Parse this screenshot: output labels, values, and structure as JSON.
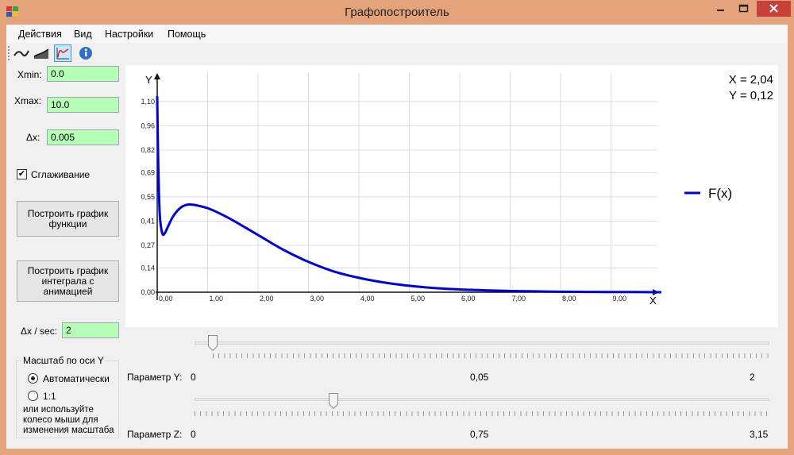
{
  "window": {
    "title": "Графопостроитель"
  },
  "menu": [
    "Действия",
    "Вид",
    "Настройки",
    "Помощь"
  ],
  "toolbar": {
    "icons": [
      "curve-icon",
      "area-icon",
      "integral-icon",
      "info-icon"
    ]
  },
  "params": {
    "xmin_label": "Xmin:",
    "xmin_value": "0.0",
    "xmax_label": "Xmax:",
    "xmax_value": "10.0",
    "dx_label": "Δx:",
    "dx_value": "0.005",
    "smoothing_label": "Сглаживание",
    "smoothing_checked": true,
    "plot_function_button": "Построить график функции",
    "plot_integral_button": "Построить график интеграла с анимацией",
    "speed_label": "Δx / sec:",
    "speed_value": "2"
  },
  "scale_group": {
    "title": "Масштаб по оси Y",
    "auto_label": "Автоматически",
    "one_to_one_label": "1:1",
    "hint": "или используйте колесо мыши для изменения масштаба",
    "selected": "auto"
  },
  "readout": {
    "x": "X = 2,04",
    "y": "Y = 0,12"
  },
  "sliders": {
    "y": {
      "label": "Параметр Y:",
      "min": "0",
      "value": "0,05",
      "max": "2"
    },
    "z": {
      "label": "Параметр Z:",
      "min": "0",
      "value": "0,75",
      "max": "3,15"
    }
  },
  "chart_data": {
    "type": "line",
    "xlabel": "X",
    "ylabel": "Y",
    "xlim": [
      0,
      10
    ],
    "ylim": [
      0,
      1.2
    ],
    "xticks": [
      "0,00",
      "1,00",
      "2,00",
      "3,00",
      "4,00",
      "5,00",
      "6,00",
      "7,00",
      "8,00",
      "9,00"
    ],
    "yticks": [
      "0,00",
      "0,14",
      "0,27",
      "0,41",
      "0,55",
      "0,69",
      "0,82",
      "0,96",
      "1,10"
    ],
    "grid": true,
    "legend": "right",
    "series": [
      {
        "name": "F(x)",
        "color": "#0000dd",
        "x": [
          0,
          0.02,
          0.05,
          0.1,
          0.15,
          0.2,
          0.3,
          0.4,
          0.5,
          0.6,
          0.7,
          0.8,
          1.0,
          1.2,
          1.5,
          2.0,
          2.5,
          3.0,
          3.5,
          4.0,
          4.5,
          5.0,
          5.5,
          6.0,
          6.5,
          7.0,
          7.5,
          8.0,
          8.5,
          9.0,
          9.5,
          10.0
        ],
        "y": [
          1.13,
          0.75,
          0.45,
          0.34,
          0.34,
          0.37,
          0.43,
          0.47,
          0.495,
          0.505,
          0.505,
          0.5,
          0.485,
          0.46,
          0.415,
          0.33,
          0.245,
          0.175,
          0.12,
          0.083,
          0.056,
          0.037,
          0.024,
          0.016,
          0.011,
          0.007,
          0.005,
          0.003,
          0.002,
          0.001,
          0.001,
          0.0
        ]
      }
    ]
  }
}
